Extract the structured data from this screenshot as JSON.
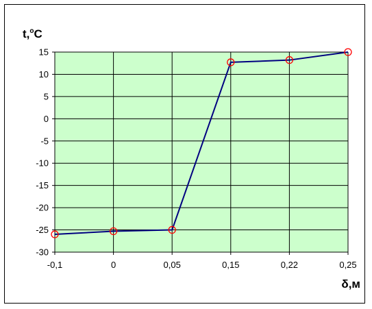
{
  "chart_data": {
    "type": "line",
    "x": [
      "-0,1",
      "0",
      "0,05",
      "0,15",
      "0,22",
      "0,25"
    ],
    "series": [
      {
        "values": [
          -26,
          -25.3,
          -25,
          12.7,
          13.2,
          15
        ]
      }
    ],
    "ylim": [
      -30,
      15
    ],
    "ystep": 5,
    "yticks": [
      "15",
      "10",
      "5",
      "0",
      "-5",
      "-10",
      "-15",
      "-20",
      "-25",
      "-30"
    ],
    "ylabel": "t,",
    "ylabel_degree": "o",
    "ylabel_unit": "C",
    "xlabel": "δ,м",
    "grid": true,
    "legend": "none",
    "colors": {
      "plot_background": "#ccffcc",
      "line": "#000080",
      "marker": "#ff0000",
      "grid": "#000000"
    }
  }
}
